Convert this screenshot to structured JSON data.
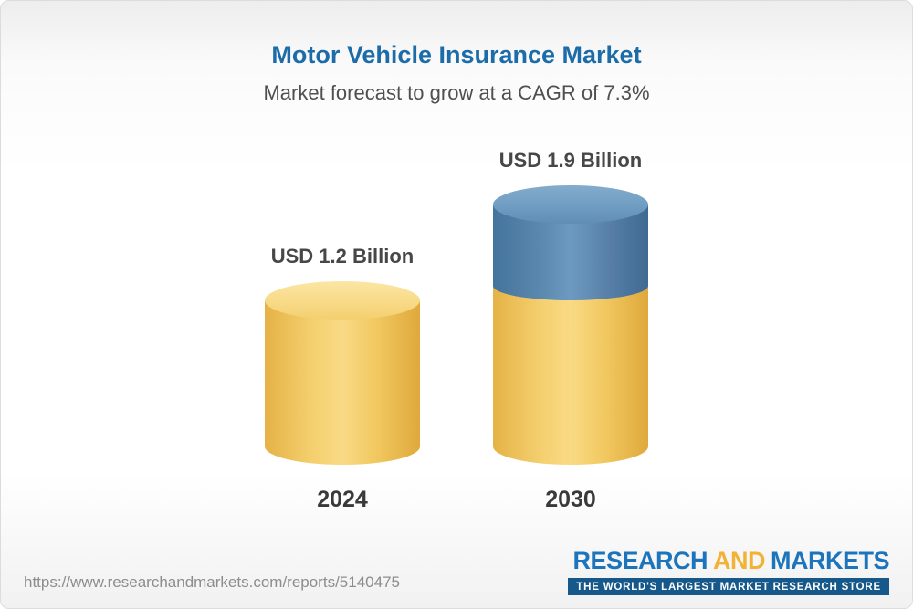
{
  "header": {
    "title": "Motor Vehicle Insurance Market",
    "subtitle": "Market forecast to grow at a CAGR of 7.3%"
  },
  "chart_data": {
    "type": "bar",
    "title": "Motor Vehicle Insurance Market",
    "subtitle": "Market forecast to grow at a CAGR of 7.3%",
    "cagr_percent": 7.3,
    "categories": [
      "2024",
      "2030"
    ],
    "values": [
      1.2,
      1.9
    ],
    "value_labels": [
      "USD 1.2 Billion",
      "USD 1.9 Billion"
    ],
    "unit": "USD Billion",
    "ylim": [
      0,
      2
    ],
    "grid": false,
    "legend": "none",
    "colors": {
      "base_bar": "#F0C75E",
      "growth_segment": "#5C89B0",
      "title_text": "#1B6CA8",
      "subtitle_text": "#4F4F4F"
    }
  },
  "footer": {
    "url": "https://www.researchandmarkets.com/reports/5140475",
    "logo": {
      "research": "RESEARCH",
      "and": "AND",
      "markets": "MARKETS",
      "tagline": "THE WORLD'S LARGEST MARKET RESEARCH STORE"
    }
  }
}
